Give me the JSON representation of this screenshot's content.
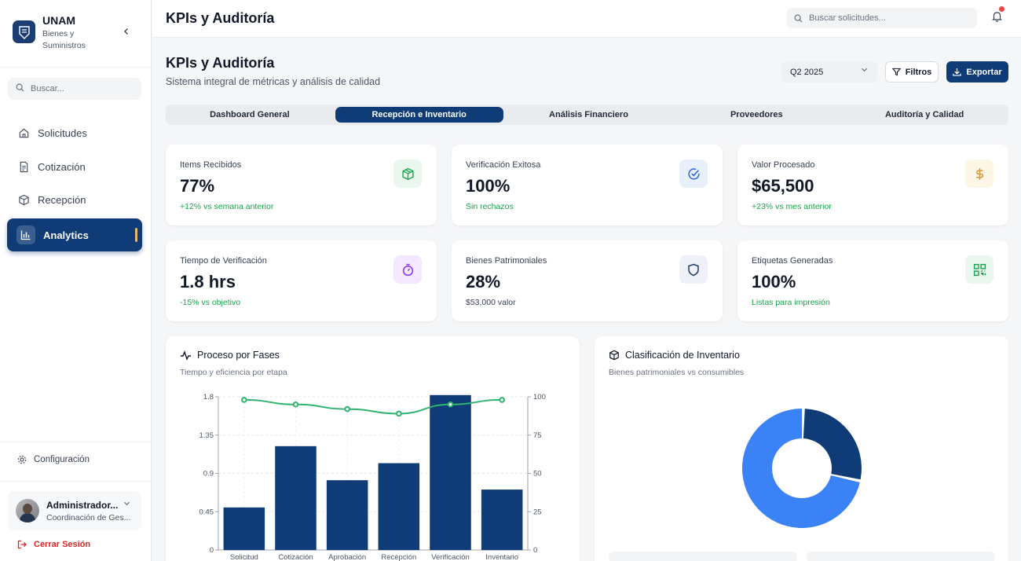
{
  "brand": {
    "title": "UNAM",
    "subtitle": "Bienes y Suministros"
  },
  "sidebar": {
    "search_placeholder": "Buscar...",
    "items": [
      {
        "label": "Solicitudes",
        "icon": "home-icon"
      },
      {
        "label": "Cotización",
        "icon": "document-icon"
      },
      {
        "label": "Recepción",
        "icon": "box-icon"
      },
      {
        "label": "Analytics",
        "icon": "bar-chart-icon",
        "active": true
      }
    ],
    "config_label": "Configuración",
    "user": {
      "name": "Administrador...",
      "role": "Coordinación de Ges..."
    },
    "logout_label": "Cerrar Sesión"
  },
  "topbar": {
    "title": "KPIs y Auditoría",
    "search_placeholder": "Buscar solicitudes...",
    "notification": true
  },
  "header": {
    "title": "KPIs y Auditoría",
    "subtitle": "Sistema integral de métricas y análisis de calidad",
    "period": "Q2 2025",
    "filter_label": "Filtros",
    "export_label": "Exportar"
  },
  "tabs": [
    {
      "label": "Dashboard General"
    },
    {
      "label": "Recepción e Inventario",
      "active": true
    },
    {
      "label": "Análisis Financiero"
    },
    {
      "label": "Proveedores"
    },
    {
      "label": "Auditoría y Calidad"
    }
  ],
  "kpis": [
    {
      "label": "Items Recibidos",
      "value": "77%",
      "note": "+12% vs semana anterior",
      "note_color": "green",
      "icon": "box-icon",
      "color": "#16a34a",
      "bg": "#e9f7ef"
    },
    {
      "label": "Verificación Exitosa",
      "value": "100%",
      "note": "Sin rechazos",
      "note_color": "green",
      "icon": "check-circle-icon",
      "color": "#2563eb",
      "bg": "#e8f0fc"
    },
    {
      "label": "Valor Procesado",
      "value": "$65,500",
      "note": "+23% vs mes anterior",
      "note_color": "green",
      "icon": "dollar-icon",
      "color": "#d99a2b",
      "bg": "#fdf6e7"
    },
    {
      "label": "Tiempo de Verificación",
      "value": "1.8 hrs",
      "note": "-15% vs objetivo",
      "note_color": "green",
      "icon": "timer-icon",
      "color": "#9333ea",
      "bg": "#f3e8fd"
    },
    {
      "label": "Bienes Patrimoniales",
      "value": "28%",
      "note": "$53,000 valor",
      "note_color": "gray",
      "icon": "shield-icon",
      "color": "#1e3a6e",
      "bg": "#eef2f8"
    },
    {
      "label": "Etiquetas Generadas",
      "value": "100%",
      "note": "Listas para impresión",
      "note_color": "green",
      "icon": "qr-code-icon",
      "color": "#16a34a",
      "bg": "#e9f7ef"
    }
  ],
  "process_panel": {
    "title": "Proceso por Fases",
    "subtitle": "Tiempo y eficiencia por etapa"
  },
  "inventory_panel": {
    "title": "Clasificación de Inventario",
    "subtitle": "Bienes patrimoniales vs consumibles"
  },
  "chart_data": [
    {
      "type": "bar",
      "categories": [
        "Solicitud",
        "Cotización",
        "Aprobación",
        "Recepción",
        "Verificación",
        "Inventario"
      ],
      "series": [
        {
          "values": [
            0.5,
            1.22,
            0.82,
            1.02,
            1.82,
            0.71
          ],
          "axis": "left",
          "color": "#0f3b76"
        },
        {
          "type": "line",
          "values": [
            98,
            95,
            92,
            89,
            95,
            98
          ],
          "axis": "right",
          "color": "#2fb36f"
        }
      ],
      "y_left": {
        "ticks": [
          "1.8",
          "1.35",
          "0.9",
          "0.45",
          "0"
        ],
        "ylim": [
          0,
          1.8
        ]
      },
      "y_right": {
        "ticks": [
          "100",
          "75",
          "50",
          "25",
          "0"
        ],
        "ylim": [
          0,
          100
        ]
      },
      "grid": true
    },
    {
      "type": "pie",
      "donut": true,
      "values": [
        28,
        72
      ],
      "colors": [
        "#0f3b76",
        "#3b82f6"
      ]
    }
  ]
}
